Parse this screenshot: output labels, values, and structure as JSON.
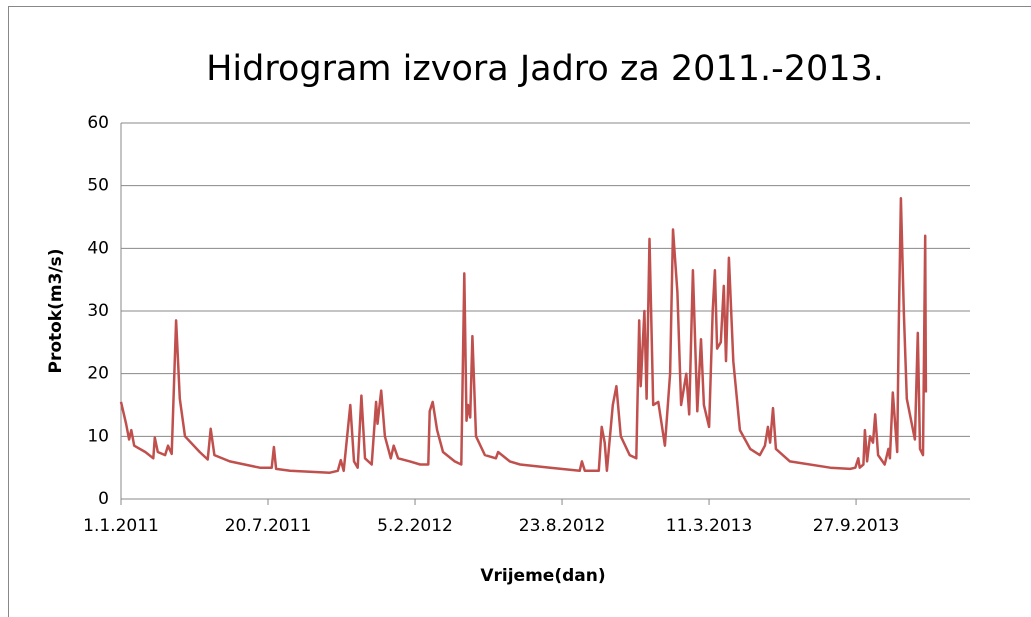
{
  "chart_data": {
    "type": "line",
    "title": "Hidrogram izvora Jadro za 2011.-2013.",
    "x_label": "Vrijeme(dan)",
    "y_label": "Protok(m3/s)",
    "xlim": [
      "1.1.2011",
      "1.3.2014"
    ],
    "xticks": [
      "1.1.2011",
      "20.7.2011",
      "5.2.2012",
      "23.8.2012",
      "11.3.2013",
      "27.9.2013"
    ],
    "ylim": [
      0,
      60
    ],
    "yticks": [
      0,
      10,
      20,
      30,
      40,
      50,
      60
    ],
    "grid": true,
    "series": [
      {
        "name": "Protok",
        "color": "#c0504d",
        "x": [
          "1.1.2011",
          "8.1.2011",
          "12.1.2011",
          "15.1.2011",
          "19.1.2011",
          "3.2.2011",
          "14.2.2011",
          "16.2.2011",
          "20.2.2011",
          "2.3.2011",
          "6.3.2011",
          "11.3.2011",
          "17.3.2011",
          "22.3.2011",
          "29.3.2011",
          "18.4.2011",
          "29.4.2011",
          "3.5.2011",
          "8.5.2011",
          "29.5.2011",
          "9.7.2011",
          "25.7.2011",
          "28.7.2011",
          "31.7.2011",
          "19.8.2011",
          "12.10.2011",
          "23.10.2011",
          "27.10.2011",
          "31.10.2011",
          "9.11.2011",
          "14.11.2011",
          "19.11.2011",
          "24.11.2011",
          "29.11.2011",
          "8.12.2011",
          "14.12.2011",
          "16.12.2011",
          "21.12.2011",
          "26.12.2011",
          "3.1.2012",
          "7.1.2012",
          "13.1.2012",
          "29.1.2012",
          "12.2.2012",
          "23.2.2012",
          "25.2.2012",
          "29.2.2012",
          "6.3.2012",
          "14.3.2012",
          "30.3.2012",
          "8.4.2012",
          "12.4.2012",
          "15.4.2012",
          "17.4.2012",
          "20.4.2012",
          "23.4.2012",
          "28.4.2012",
          "10.5.2012",
          "25.5.2012",
          "28.5.2012",
          "13.6.2012",
          "27.6.2012",
          "7.8.2012",
          "16.9.2012",
          "19.9.2012",
          "23.9.2012",
          "12.10.2012",
          "16.10.2012",
          "20.10.2012",
          "23.10.2012",
          "31.10.2012",
          "5.11.2012",
          "11.11.2012",
          "23.11.2012",
          "2.12.2012",
          "6.12.2012",
          "8.12.2012",
          "13.12.2012",
          "16.12.2012",
          "20.12.2012",
          "25.12.2012",
          "1.1.2013",
          "10.1.2013",
          "17.1.2013",
          "21.1.2013",
          "27.1.2013",
          "1.2.2013",
          "8.2.2013",
          "12.2.2013",
          "17.2.2013",
          "23.2.2013",
          "28.2.2013",
          "4.3.2013",
          "11.3.2013",
          "16.3.2013",
          "19.3.2013",
          "22.3.2013",
          "27.3.2013",
          "31.3.2013",
          "3.4.2013",
          "7.4.2013",
          "13.4.2013",
          "22.4.2013",
          "6.5.2013",
          "19.5.2013",
          "26.5.2013",
          "30.5.2013",
          "2.6.2013",
          "6.6.2013",
          "10.6.2013",
          "29.6.2013",
          "23.8.2013",
          "19.9.2013",
          "26.9.2013",
          "30.9.2013",
          "2.10.2013",
          "7.10.2013",
          "9.10.2013",
          "12.10.2013",
          "16.10.2013",
          "20.10.2013",
          "23.10.2013",
          "27.10.2013",
          "5.11.2013",
          "10.11.2013",
          "12.11.2013",
          "16.11.2013",
          "22.11.2013",
          "24.11.2013",
          "27.11.2013",
          "1.12.2013",
          "5.12.2013",
          "16.12.2013",
          "20.12.2013",
          "23.12.2013",
          "27.12.2013",
          "30.12.2013",
          "31.12.2013"
        ],
        "values": [
          15.5,
          12,
          9.5,
          11,
          8.5,
          7.5,
          6.5,
          9.8,
          7.5,
          7,
          8.5,
          7.2,
          28.5,
          16,
          10,
          7.5,
          6.3,
          11.2,
          7,
          6,
          5,
          5,
          8.3,
          4.8,
          4.5,
          4.2,
          4.5,
          6.2,
          4.5,
          15,
          6,
          5,
          16.5,
          6.5,
          5.5,
          15.5,
          12,
          17.3,
          10,
          6.5,
          8.5,
          6.5,
          6,
          5.5,
          5.5,
          14,
          15.5,
          11,
          7.5,
          6,
          5.5,
          36,
          12.5,
          15,
          13,
          26,
          10,
          7,
          6.5,
          7.5,
          6,
          5.5,
          5,
          4.5,
          6,
          4.5,
          4.5,
          11.5,
          9,
          4.5,
          15,
          18,
          10,
          7,
          6.5,
          28.5,
          18,
          30,
          16,
          41.5,
          15,
          15.5,
          8.5,
          20,
          43,
          33,
          15,
          20,
          13.5,
          36.5,
          14,
          25.5,
          15,
          11.5,
          30,
          36.5,
          24,
          25,
          34,
          22,
          38.5,
          22,
          11,
          8,
          7,
          8.5,
          11.5,
          9,
          14.5,
          8,
          6,
          5,
          4.8,
          5,
          6.5,
          5,
          5.5,
          11,
          6,
          10,
          9,
          13.5,
          7,
          5.5,
          8,
          6.5,
          17,
          7.5,
          27,
          48,
          30,
          16,
          9.5,
          26.5,
          8,
          7,
          42,
          17
        ]
      }
    ]
  }
}
